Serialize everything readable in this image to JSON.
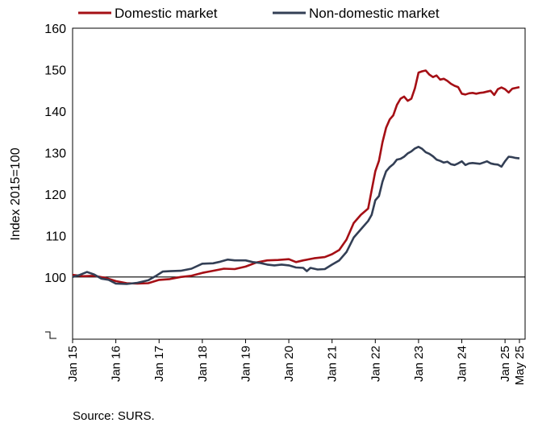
{
  "chart_data": {
    "type": "line",
    "ylabel": "Index 2015=100",
    "ylim": [
      85,
      160
    ],
    "yticks": [
      100,
      110,
      120,
      130,
      140,
      150,
      160
    ],
    "reference_line": 100,
    "x_range": [
      "2015-01",
      "2025-05"
    ],
    "xticks": [
      {
        "date": "2015-01",
        "label": "Jan 15"
      },
      {
        "date": "2016-01",
        "label": "Jan 16"
      },
      {
        "date": "2017-01",
        "label": "Jan 17"
      },
      {
        "date": "2018-01",
        "label": "Jan 18"
      },
      {
        "date": "2019-01",
        "label": "Jan 19"
      },
      {
        "date": "2020-01",
        "label": "Jan 20"
      },
      {
        "date": "2021-01",
        "label": "Jan 21"
      },
      {
        "date": "2022-01",
        "label": "Jan 22"
      },
      {
        "date": "2023-01",
        "label": "Jan 23"
      },
      {
        "date": "2024-01",
        "label": "Jan 24"
      },
      {
        "date": "2025-01",
        "label": "Jan 25"
      },
      {
        "date": "2025-05",
        "label": "May 25"
      }
    ],
    "legend_position": "top",
    "grid": false,
    "series": [
      {
        "name": "Domestic market",
        "color": "#a50f15",
        "points": [
          [
            "2015-01",
            100.5
          ],
          [
            "2015-04",
            100.2
          ],
          [
            "2015-07",
            100.3
          ],
          [
            "2015-10",
            99.8
          ],
          [
            "2016-01",
            99.0
          ],
          [
            "2016-04",
            98.5
          ],
          [
            "2016-07",
            98.4
          ],
          [
            "2016-10",
            98.5
          ],
          [
            "2017-01",
            99.3
          ],
          [
            "2017-04",
            99.5
          ],
          [
            "2017-07",
            100.0
          ],
          [
            "2017-10",
            100.3
          ],
          [
            "2018-01",
            101.0
          ],
          [
            "2018-04",
            101.5
          ],
          [
            "2018-07",
            102.0
          ],
          [
            "2018-10",
            101.9
          ],
          [
            "2019-01",
            102.5
          ],
          [
            "2019-04",
            103.5
          ],
          [
            "2019-07",
            104.0
          ],
          [
            "2019-10",
            104.1
          ],
          [
            "2020-01",
            104.3
          ],
          [
            "2020-03",
            103.6
          ],
          [
            "2020-05",
            104.0
          ],
          [
            "2020-08",
            104.5
          ],
          [
            "2020-11",
            104.8
          ],
          [
            "2021-01",
            105.5
          ],
          [
            "2021-03",
            106.5
          ],
          [
            "2021-05",
            109.0
          ],
          [
            "2021-07",
            113.0
          ],
          [
            "2021-09",
            115.0
          ],
          [
            "2021-11",
            116.5
          ],
          [
            "2022-01",
            125.5
          ],
          [
            "2022-02",
            128.0
          ],
          [
            "2022-03",
            132.5
          ],
          [
            "2022-04",
            136.0
          ],
          [
            "2022-05",
            138.0
          ],
          [
            "2022-06",
            139.0
          ],
          [
            "2022-07",
            141.5
          ],
          [
            "2022-08",
            143.0
          ],
          [
            "2022-09",
            143.5
          ],
          [
            "2022-10",
            142.5
          ],
          [
            "2022-11",
            143.0
          ],
          [
            "2022-12",
            145.5
          ],
          [
            "2023-01",
            149.3
          ],
          [
            "2023-02",
            149.6
          ],
          [
            "2023-03",
            149.8
          ],
          [
            "2023-04",
            148.8
          ],
          [
            "2023-05",
            148.2
          ],
          [
            "2023-06",
            148.6
          ],
          [
            "2023-07",
            147.6
          ],
          [
            "2023-08",
            147.8
          ],
          [
            "2023-09",
            147.3
          ],
          [
            "2023-10",
            146.6
          ],
          [
            "2023-11",
            146.1
          ],
          [
            "2023-12",
            145.8
          ],
          [
            "2024-01",
            144.2
          ],
          [
            "2024-02",
            144.0
          ],
          [
            "2024-03",
            144.3
          ],
          [
            "2024-04",
            144.4
          ],
          [
            "2024-05",
            144.2
          ],
          [
            "2024-06",
            144.4
          ],
          [
            "2024-07",
            144.5
          ],
          [
            "2024-08",
            144.7
          ],
          [
            "2024-09",
            144.9
          ],
          [
            "2024-10",
            143.9
          ],
          [
            "2024-11",
            145.3
          ],
          [
            "2024-12",
            145.7
          ],
          [
            "2025-01",
            145.3
          ],
          [
            "2025-02",
            144.5
          ],
          [
            "2025-03",
            145.4
          ],
          [
            "2025-04",
            145.6
          ],
          [
            "2025-05",
            145.8
          ]
        ]
      },
      {
        "name": "Non-domestic market",
        "color": "#333f55",
        "points": [
          [
            "2015-01",
            100.0
          ],
          [
            "2015-03",
            100.5
          ],
          [
            "2015-05",
            101.2
          ],
          [
            "2015-07",
            100.6
          ],
          [
            "2015-09",
            99.6
          ],
          [
            "2015-11",
            99.3
          ],
          [
            "2016-01",
            98.4
          ],
          [
            "2016-04",
            98.3
          ],
          [
            "2016-07",
            98.6
          ],
          [
            "2016-10",
            99.2
          ],
          [
            "2016-12",
            100.2
          ],
          [
            "2017-02",
            101.3
          ],
          [
            "2017-04",
            101.4
          ],
          [
            "2017-07",
            101.5
          ],
          [
            "2017-10",
            102.0
          ],
          [
            "2018-01",
            103.2
          ],
          [
            "2018-04",
            103.3
          ],
          [
            "2018-06",
            103.7
          ],
          [
            "2018-08",
            104.2
          ],
          [
            "2018-10",
            104.0
          ],
          [
            "2019-01",
            104.0
          ],
          [
            "2019-03",
            103.6
          ],
          [
            "2019-05",
            103.4
          ],
          [
            "2019-07",
            103.0
          ],
          [
            "2019-09",
            102.8
          ],
          [
            "2019-11",
            103.0
          ],
          [
            "2020-01",
            102.8
          ],
          [
            "2020-03",
            102.3
          ],
          [
            "2020-05",
            102.2
          ],
          [
            "2020-06",
            101.4
          ],
          [
            "2020-07",
            102.2
          ],
          [
            "2020-09",
            101.8
          ],
          [
            "2020-11",
            101.9
          ],
          [
            "2021-01",
            103.0
          ],
          [
            "2021-03",
            104.0
          ],
          [
            "2021-05",
            106.0
          ],
          [
            "2021-07",
            109.5
          ],
          [
            "2021-09",
            111.5
          ],
          [
            "2021-11",
            113.5
          ],
          [
            "2021-12",
            115.0
          ],
          [
            "2022-01",
            118.5
          ],
          [
            "2022-02",
            119.5
          ],
          [
            "2022-03",
            123.0
          ],
          [
            "2022-04",
            125.5
          ],
          [
            "2022-05",
            126.5
          ],
          [
            "2022-06",
            127.2
          ],
          [
            "2022-07",
            128.3
          ],
          [
            "2022-08",
            128.5
          ],
          [
            "2022-09",
            129.0
          ],
          [
            "2022-10",
            129.8
          ],
          [
            "2022-11",
            130.3
          ],
          [
            "2022-12",
            131.0
          ],
          [
            "2023-01",
            131.4
          ],
          [
            "2023-02",
            130.9
          ],
          [
            "2023-03",
            130.1
          ],
          [
            "2023-04",
            129.7
          ],
          [
            "2023-05",
            129.1
          ],
          [
            "2023-06",
            128.3
          ],
          [
            "2023-07",
            128.0
          ],
          [
            "2023-08",
            127.6
          ],
          [
            "2023-09",
            127.8
          ],
          [
            "2023-10",
            127.2
          ],
          [
            "2023-11",
            127.0
          ],
          [
            "2023-12",
            127.4
          ],
          [
            "2024-01",
            127.9
          ],
          [
            "2024-02",
            127.0
          ],
          [
            "2024-03",
            127.4
          ],
          [
            "2024-04",
            127.5
          ],
          [
            "2024-05",
            127.4
          ],
          [
            "2024-06",
            127.3
          ],
          [
            "2024-07",
            127.6
          ],
          [
            "2024-08",
            127.9
          ],
          [
            "2024-09",
            127.4
          ],
          [
            "2024-10",
            127.2
          ],
          [
            "2024-11",
            127.1
          ],
          [
            "2024-12",
            126.6
          ],
          [
            "2025-01",
            127.9
          ],
          [
            "2025-02",
            129.0
          ],
          [
            "2025-03",
            128.9
          ],
          [
            "2025-04",
            128.7
          ],
          [
            "2025-05",
            128.6
          ]
        ]
      }
    ],
    "source": "Source: SURS."
  }
}
